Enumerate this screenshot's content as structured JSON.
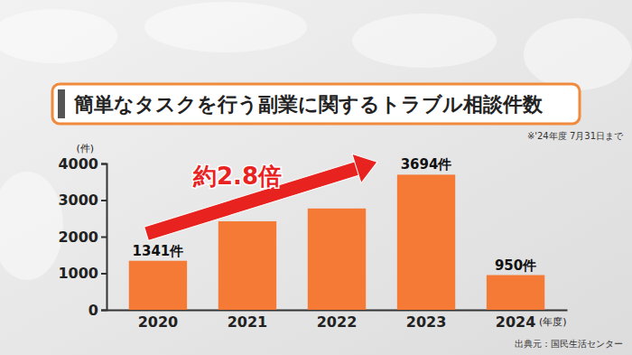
{
  "chart_data": {
    "type": "bar",
    "title": "簡単なタスクを行う副業に関するトラブル相談件数",
    "note": "※'24年度 7月31日まで",
    "y_label": "(件)",
    "x_label": "(年度)",
    "source": "出典元：国民生活センター",
    "annotations": [
      "約2.8倍"
    ],
    "categories": [
      "2020",
      "2021",
      "2022",
      "2023",
      "2024"
    ],
    "values": [
      1341,
      2420,
      2770,
      3694,
      950
    ],
    "data_labels": true,
    "value_labels": [
      "1341件",
      null,
      null,
      "3694件",
      "950件"
    ],
    "color": "#f47a35",
    "ylim": [
      0,
      4000
    ],
    "yticks": [
      0,
      1000,
      2000,
      3000,
      4000
    ],
    "grid": false
  }
}
